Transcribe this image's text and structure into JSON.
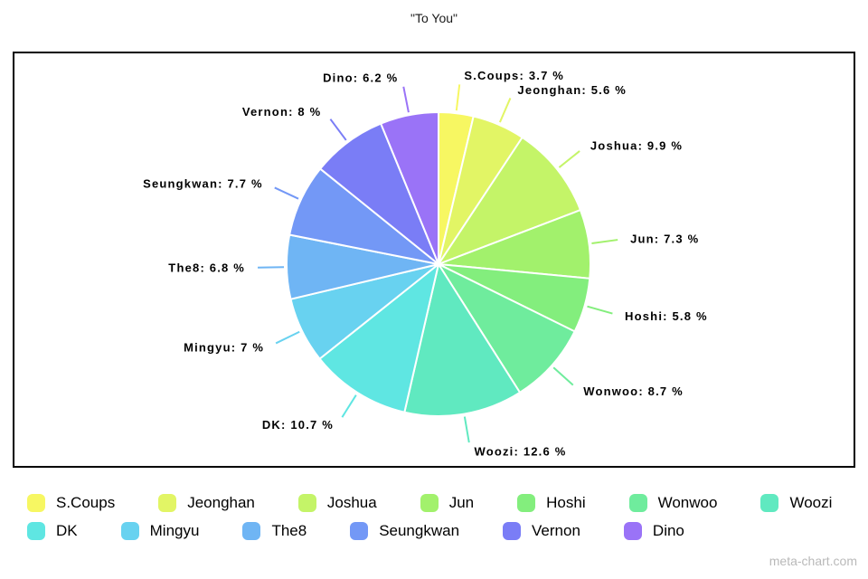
{
  "title": "\"To You\"",
  "watermark": "meta-chart.com",
  "chart_data": {
    "type": "pie",
    "title": "\"To You\"",
    "unit": "%",
    "start_angle_deg": 0,
    "direction": "clockwise",
    "legend_position": "bottom",
    "legend_row_break": 7,
    "slices": [
      {
        "label": "S.Coups",
        "value": 3.7,
        "display": "S.Coups: 3.7 %",
        "color": "#f7f762"
      },
      {
        "label": "Jeonghan",
        "value": 5.6,
        "display": "Jeonghan: 5.6 %",
        "color": "#e2f565"
      },
      {
        "label": "Joshua",
        "value": 9.9,
        "display": "Joshua: 9.9 %",
        "color": "#c4f468"
      },
      {
        "label": "Jun",
        "value": 7.3,
        "display": "Jun: 7.3 %",
        "color": "#a2f16c"
      },
      {
        "label": "Hoshi",
        "value": 5.8,
        "display": "Hoshi: 5.8 %",
        "color": "#83ee7d"
      },
      {
        "label": "Wonwoo",
        "value": 8.7,
        "display": "Wonwoo: 8.7 %",
        "color": "#6fec9d"
      },
      {
        "label": "Woozi",
        "value": 12.6,
        "display": "Woozi: 12.6 %",
        "color": "#60e9c0"
      },
      {
        "label": "DK",
        "value": 10.7,
        "display": "DK: 10.7 %",
        "color": "#5fe6e2"
      },
      {
        "label": "Mingyu",
        "value": 7,
        "display": "Mingyu: 7 %",
        "color": "#68d2f0"
      },
      {
        "label": "The8",
        "value": 6.8,
        "display": "The8: 6.8 %",
        "color": "#6fb5f4"
      },
      {
        "label": "Seungkwan",
        "value": 7.7,
        "display": "Seungkwan: 7.7 %",
        "color": "#7398f6"
      },
      {
        "label": "Vernon",
        "value": 8,
        "display": "Vernon: 8 %",
        "color": "#7a7df6"
      },
      {
        "label": "Dino",
        "value": 6.2,
        "display": "Dino: 6.2 %",
        "color": "#9a73f7"
      }
    ]
  }
}
